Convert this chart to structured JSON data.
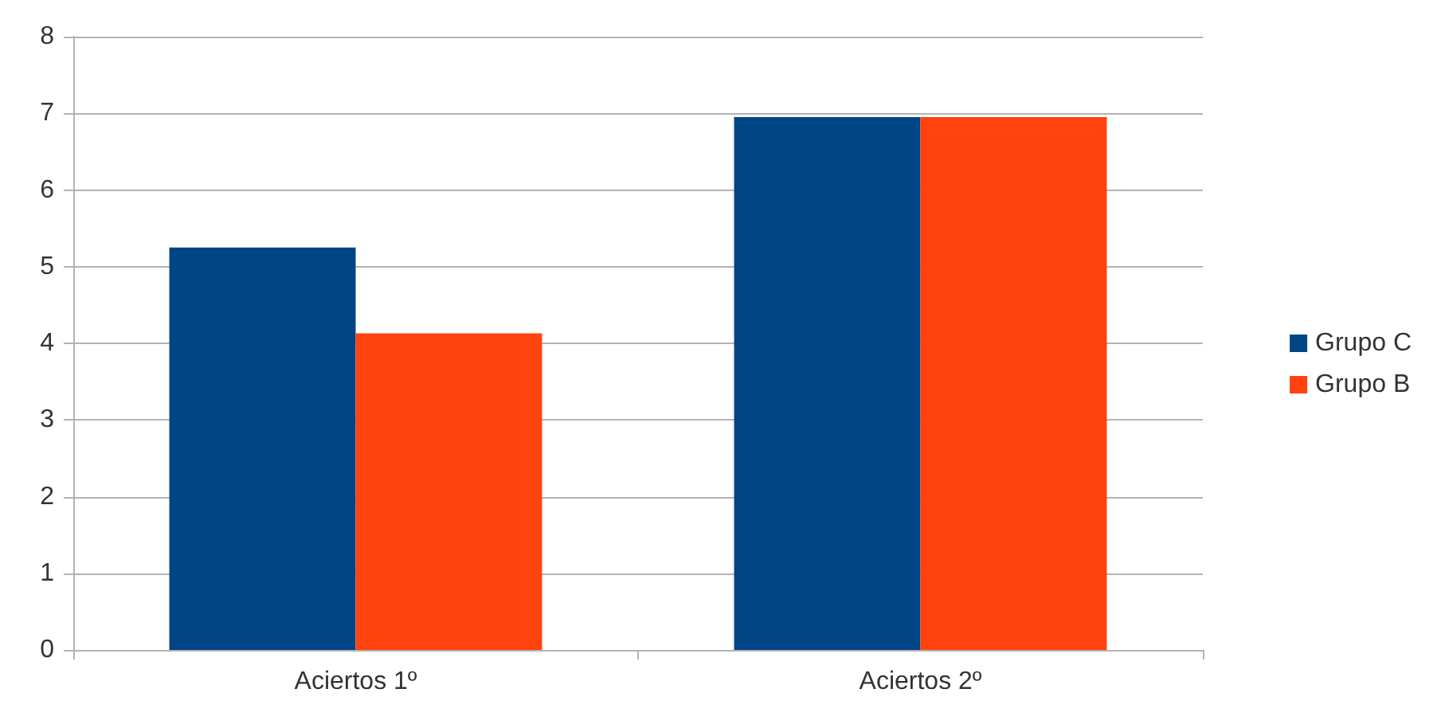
{
  "chart_data": {
    "type": "bar",
    "categories": [
      "Aciertos 1º",
      "Aciertos 2º"
    ],
    "series": [
      {
        "name": "Grupo C",
        "color": "#004586",
        "values": [
          5.25,
          6.95
        ]
      },
      {
        "name": "Grupo B",
        "color": "#ff420e",
        "values": [
          4.13,
          6.95
        ]
      }
    ],
    "ylim": [
      0,
      8
    ],
    "yticks": [
      0,
      1,
      2,
      3,
      4,
      5,
      6,
      7,
      8
    ],
    "grid": "y",
    "legend": "right"
  }
}
